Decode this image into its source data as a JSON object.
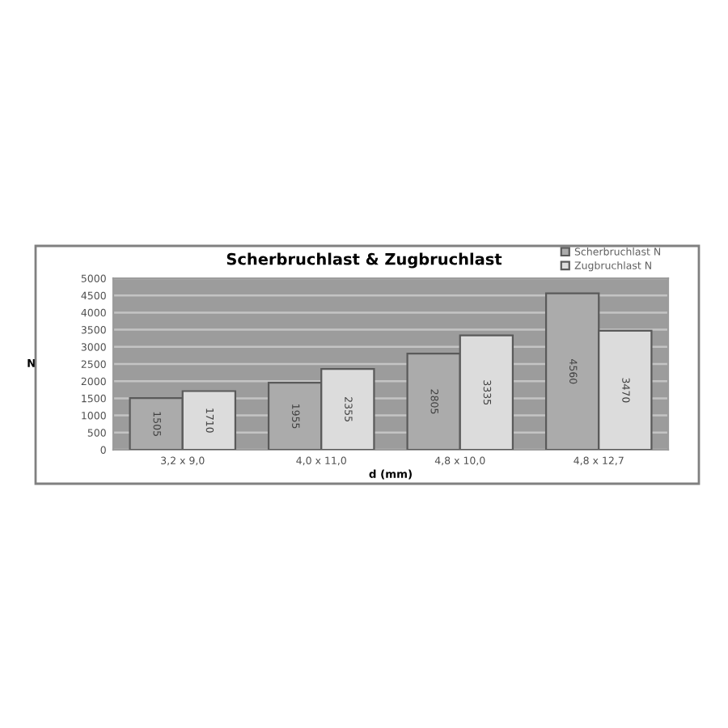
{
  "chart_data": {
    "type": "bar",
    "title": "Scherbruchlast & Zugbruchlast",
    "xlabel": "d (mm)",
    "ylabel": "N",
    "categories": [
      "3,2 x 9,0",
      "4,0 x 11,0",
      "4,8 x 10,0",
      "4,8 x 12,7"
    ],
    "series": [
      {
        "name": "Scherbruchlast N",
        "color": "#ababab",
        "values": [
          1505,
          1955,
          2805,
          4560
        ]
      },
      {
        "name": "Zugbruchlast N",
        "color": "#dcdcdc",
        "values": [
          1710,
          2355,
          3335,
          3470
        ]
      }
    ],
    "ylim": [
      0,
      5000
    ],
    "yticks": [
      0,
      500,
      1000,
      1500,
      2000,
      2500,
      3000,
      3500,
      4000,
      4500,
      5000
    ],
    "grid": "y",
    "legend": "top right",
    "data_labels": true
  }
}
